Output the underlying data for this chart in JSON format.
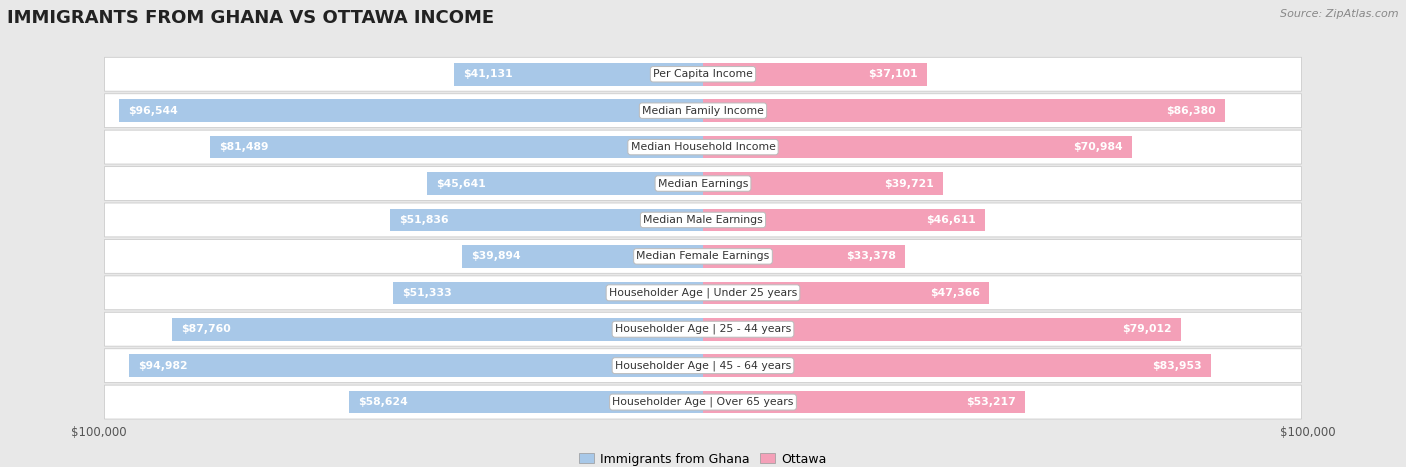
{
  "title": "IMMIGRANTS FROM GHANA VS OTTAWA INCOME",
  "source": "Source: ZipAtlas.com",
  "categories": [
    "Per Capita Income",
    "Median Family Income",
    "Median Household Income",
    "Median Earnings",
    "Median Male Earnings",
    "Median Female Earnings",
    "Householder Age | Under 25 years",
    "Householder Age | 25 - 44 years",
    "Householder Age | 45 - 64 years",
    "Householder Age | Over 65 years"
  ],
  "ghana_values": [
    41131,
    96544,
    81489,
    45641,
    51836,
    39894,
    51333,
    87760,
    94982,
    58624
  ],
  "ottawa_values": [
    37101,
    86380,
    70984,
    39721,
    46611,
    33378,
    47366,
    79012,
    83953,
    53217
  ],
  "ghana_labels": [
    "$41,131",
    "$96,544",
    "$81,489",
    "$45,641",
    "$51,836",
    "$39,894",
    "$51,333",
    "$87,760",
    "$94,982",
    "$58,624"
  ],
  "ottawa_labels": [
    "$37,101",
    "$86,380",
    "$70,984",
    "$39,721",
    "$46,611",
    "$33,378",
    "$47,366",
    "$79,012",
    "$83,953",
    "$53,217"
  ],
  "max_value": 100000,
  "ghana_color": "#a8c8e8",
  "ottawa_color": "#f4a0b8",
  "bg_color": "#e8e8e8",
  "row_bg": "#ffffff",
  "row_gap_bg": "#e8e8e8",
  "legend_ghana": "Immigrants from Ghana",
  "legend_ottawa": "Ottawa",
  "x_label_left": "$100,000",
  "x_label_right": "$100,000",
  "bar_height": 0.62,
  "label_threshold": 30000,
  "inside_label_color": "white",
  "outside_label_color": "#555555",
  "category_label_fontsize": 7.8,
  "value_label_fontsize": 7.8,
  "title_fontsize": 13,
  "source_fontsize": 8
}
